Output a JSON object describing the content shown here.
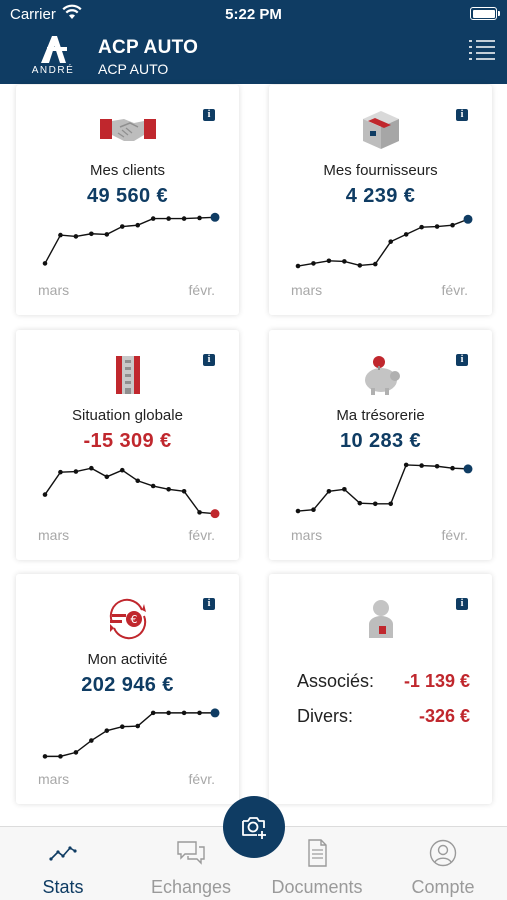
{
  "status_bar": {
    "carrier": "Carrier",
    "time": "5:22 PM"
  },
  "header": {
    "logo_text": "ANDRÉ",
    "title": "ACP AUTO",
    "subtitle": "ACP AUTO"
  },
  "colors": {
    "brand": "#0f3c63",
    "negative": "#c0272d",
    "line": "#111111",
    "muted": "#a8a8a8"
  },
  "cards": [
    {
      "id": "clients",
      "icon": "handshake-icon",
      "title": "Mes clients",
      "value": "49 560 €",
      "negative": false,
      "label_start": "mars",
      "label_end": "févr.",
      "series": [
        1.0,
        5.3,
        5.1,
        5.5,
        5.4,
        6.6,
        6.8,
        7.8,
        7.8,
        7.8,
        7.9,
        8.0
      ]
    },
    {
      "id": "fournisseurs",
      "icon": "box-icon",
      "title": "Mes fournisseurs",
      "value": "4 239 €",
      "negative": false,
      "label_start": "mars",
      "label_end": "févr.",
      "series": [
        0.6,
        1.0,
        1.4,
        1.3,
        0.7,
        0.9,
        4.3,
        5.4,
        6.5,
        6.6,
        6.8,
        7.7
      ]
    },
    {
      "id": "situation",
      "icon": "building-icon",
      "title": "Situation globale",
      "value": "-15 309 €",
      "negative": true,
      "label_start": "mars",
      "label_end": "févr.",
      "series": [
        3.1,
        6.5,
        6.6,
        7.1,
        5.8,
        6.8,
        5.2,
        4.4,
        3.9,
        3.6,
        0.4,
        0.2
      ]
    },
    {
      "id": "tresorerie",
      "icon": "piggy-bank-icon",
      "title": "Ma trésorerie",
      "value": "10 283 €",
      "negative": false,
      "label_start": "mars",
      "label_end": "févr.",
      "series": [
        0.6,
        0.8,
        3.6,
        3.9,
        1.8,
        1.7,
        1.7,
        7.6,
        7.5,
        7.4,
        7.1,
        7.0
      ]
    },
    {
      "id": "activite",
      "icon": "euro-cycle-icon",
      "title": "Mon activité",
      "value": "202 946 €",
      "negative": false,
      "label_start": "mars",
      "label_end": "févr.",
      "series": [
        0.4,
        0.4,
        1.0,
        2.8,
        4.3,
        4.9,
        5.0,
        7.0,
        7.0,
        7.0,
        7.0,
        7.0
      ]
    }
  ],
  "associates_card": {
    "icon": "person-icon",
    "rows": [
      {
        "label": "Associés:",
        "value": "-1 139 €"
      },
      {
        "label": "Divers:",
        "value": "-326 €"
      }
    ]
  },
  "tabs": [
    {
      "label": "Stats",
      "icon": "chart-line-icon",
      "active": true
    },
    {
      "label": "Echanges",
      "icon": "chat-bubbles-icon",
      "active": false
    },
    {
      "label": "Documents",
      "icon": "document-icon",
      "active": false
    },
    {
      "label": "Compte",
      "icon": "user-circle-icon",
      "active": false
    }
  ],
  "fab": {
    "icon": "camera-plus-icon"
  }
}
